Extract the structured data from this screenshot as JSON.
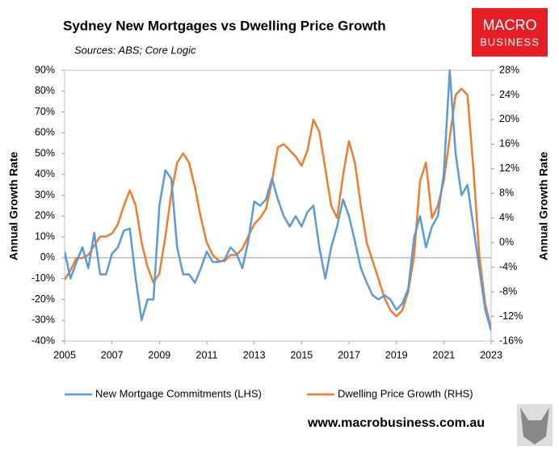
{
  "chart_data": {
    "type": "line",
    "title": "Sydney New Mortgages vs Dwelling Price Growth",
    "subtitle": "Sources: ABS; Core Logic",
    "logo": [
      "MACRO",
      "BUSINESS"
    ],
    "footer": "www.macrobusiness.com.au",
    "ylabel": "Annual Growth Rate",
    "y2label": "Annual Growth Rate",
    "legend": "bottom",
    "xlim": [
      2005,
      2023
    ],
    "xticks": [
      2005,
      2007,
      2009,
      2011,
      2013,
      2015,
      2017,
      2019,
      2021,
      2023
    ],
    "ylim": [
      -40,
      90
    ],
    "yticks": [
      {
        "value": 90,
        "label": "90%"
      },
      {
        "value": 80,
        "label": "80%"
      },
      {
        "value": 70,
        "label": "70%"
      },
      {
        "value": 60,
        "label": "60%"
      },
      {
        "value": 50,
        "label": "50%"
      },
      {
        "value": 40,
        "label": "40%"
      },
      {
        "value": 30,
        "label": "30%"
      },
      {
        "value": 20,
        "label": "20%"
      },
      {
        "value": 10,
        "label": "10%"
      },
      {
        "value": 0,
        "label": "0%"
      },
      {
        "value": -10,
        "label": "-10%"
      },
      {
        "value": -20,
        "label": "-20%"
      },
      {
        "value": -30,
        "label": "-30%"
      },
      {
        "value": -40,
        "label": "-40%"
      }
    ],
    "y2lim": [
      -16,
      28
    ],
    "y2ticks": [
      {
        "value": 28,
        "label": "28%"
      },
      {
        "value": 24,
        "label": "24%"
      },
      {
        "value": 20,
        "label": "20%"
      },
      {
        "value": 16,
        "label": "16%"
      },
      {
        "value": 12,
        "label": "12%"
      },
      {
        "value": 8,
        "label": "8%"
      },
      {
        "value": 4,
        "label": "4%"
      },
      {
        "value": 0,
        "label": "0%"
      },
      {
        "value": -4,
        "label": "-4%"
      },
      {
        "value": -8,
        "label": "-8%"
      },
      {
        "value": -12,
        "label": "-12%"
      },
      {
        "value": -16,
        "label": "-16%"
      }
    ],
    "x": [
      2005,
      2005.25,
      2005.5,
      2005.75,
      2006,
      2006.25,
      2006.5,
      2006.75,
      2007,
      2007.25,
      2007.5,
      2007.75,
      2008,
      2008.25,
      2008.5,
      2008.75,
      2009,
      2009.25,
      2009.5,
      2009.75,
      2010,
      2010.25,
      2010.5,
      2010.75,
      2011,
      2011.25,
      2011.5,
      2011.75,
      2012,
      2012.25,
      2012.5,
      2012.75,
      2013,
      2013.25,
      2013.5,
      2013.75,
      2014,
      2014.25,
      2014.5,
      2014.75,
      2015,
      2015.25,
      2015.5,
      2015.75,
      2016,
      2016.25,
      2016.5,
      2016.75,
      2017,
      2017.25,
      2017.5,
      2017.75,
      2018,
      2018.25,
      2018.5,
      2018.75,
      2019,
      2019.25,
      2019.5,
      2019.75,
      2020,
      2020.25,
      2020.5,
      2020.75,
      2021,
      2021.25,
      2021.5,
      2021.75,
      2022,
      2022.25,
      2022.5,
      2022.75,
      2023
    ],
    "series": [
      {
        "name": "New Mortgage Commitments (LHS)",
        "color": "#5b9bd5",
        "axis": "y",
        "values": [
          3,
          -10,
          -2,
          5,
          -5,
          12,
          -8,
          -8,
          2,
          5,
          13,
          14,
          -10,
          -30,
          -20,
          -20,
          25,
          42,
          38,
          5,
          -8,
          -8,
          -12,
          -5,
          3,
          -2,
          -2,
          -1,
          5,
          2,
          -5,
          8,
          27,
          25,
          28,
          38,
          28,
          20,
          15,
          20,
          15,
          22,
          25,
          5,
          -10,
          5,
          15,
          28,
          20,
          8,
          -5,
          -12,
          -18,
          -20,
          -18,
          -20,
          -25,
          -22,
          -15,
          10,
          20,
          5,
          15,
          20,
          40,
          90,
          50,
          30,
          35,
          15,
          -5,
          -25,
          -35
        ]
      },
      {
        "name": "Dwelling Price Growth (RHS)",
        "color": "#ed7d31",
        "axis": "y2",
        "values": [
          -6,
          -4.5,
          -2.5,
          -2.5,
          -2,
          -0.5,
          1,
          1,
          1.5,
          3,
          6,
          8.5,
          6,
          0,
          -4,
          -6.5,
          -5,
          1,
          8,
          13,
          14.5,
          13,
          9,
          4,
          0,
          -2,
          -3,
          -3,
          -2,
          -2,
          -1,
          1,
          3,
          4,
          5.5,
          10,
          15.5,
          16,
          15,
          14,
          12.5,
          15,
          20,
          18,
          12,
          6,
          4,
          11,
          16.5,
          13,
          6,
          0,
          -3,
          -6,
          -9,
          -11,
          -12,
          -11,
          -8,
          -2,
          10,
          13,
          4,
          6,
          10,
          17,
          24,
          25,
          24,
          12,
          -2,
          -10,
          -14
        ]
      }
    ]
  }
}
